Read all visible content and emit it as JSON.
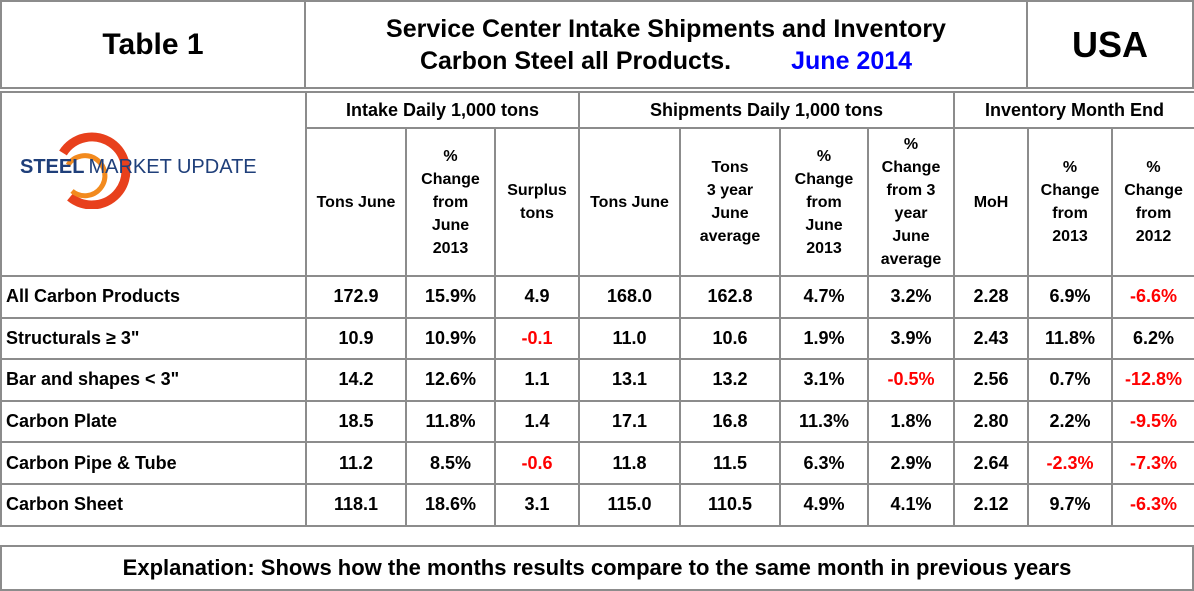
{
  "header": {
    "table_label": "Table 1",
    "title_line1": "Service Center Intake Shipments and Inventory",
    "title_line2": "Carbon Steel all Products.",
    "date": "June 2014",
    "region": "USA"
  },
  "logo": {
    "part1": "STEEL",
    "part2": "MARKET UPDATE"
  },
  "table": {
    "groups": [
      {
        "label": "Intake Daily 1,000 tons",
        "span": 3
      },
      {
        "label": "Shipments Daily 1,000 tons",
        "span": 4
      },
      {
        "label": "Inventory Month End",
        "span": 3
      }
    ],
    "columns": [
      [
        "Tons June"
      ],
      [
        "%",
        "Change",
        "from",
        "June",
        "2013"
      ],
      [
        "Surplus",
        "tons"
      ],
      [
        "Tons June"
      ],
      [
        "Tons",
        "3 year",
        "June",
        "average"
      ],
      [
        "%",
        "Change",
        "from",
        "June",
        "2013"
      ],
      [
        "%",
        "Change",
        "from 3",
        "year",
        "June",
        "average"
      ],
      [
        "MoH"
      ],
      [
        "%",
        "Change",
        "from",
        "2013"
      ],
      [
        "%",
        "Change",
        "from",
        "2012"
      ]
    ],
    "rows": [
      [
        "All Carbon Products",
        "172.9",
        "15.9%",
        "4.9",
        "168.0",
        "162.8",
        "4.7%",
        "3.2%",
        "2.28",
        "6.9%",
        "-6.6%"
      ],
      [
        "Structurals ≥ 3\"",
        "10.9",
        "10.9%",
        "-0.1",
        "11.0",
        "10.6",
        "1.9%",
        "3.9%",
        "2.43",
        "11.8%",
        "6.2%"
      ],
      [
        "Bar and shapes < 3\"",
        "14.2",
        "12.6%",
        "1.1",
        "13.1",
        "13.2",
        "3.1%",
        "-0.5%",
        "2.56",
        "0.7%",
        "-12.8%"
      ],
      [
        "Carbon Plate",
        "18.5",
        "11.8%",
        "1.4",
        "17.1",
        "16.8",
        "11.3%",
        "1.8%",
        "2.80",
        "2.2%",
        "-9.5%"
      ],
      [
        "Carbon Pipe & Tube",
        "11.2",
        "8.5%",
        "-0.6",
        "11.8",
        "11.5",
        "6.3%",
        "2.9%",
        "2.64",
        "-2.3%",
        "-7.3%"
      ],
      [
        "Carbon Sheet",
        "118.1",
        "18.6%",
        "3.1",
        "115.0",
        "110.5",
        "4.9%",
        "4.1%",
        "2.12",
        "9.7%",
        "-6.3%"
      ]
    ]
  },
  "footer": {
    "explanation": "Explanation: Shows how the months results compare to the same month in previous years"
  }
}
